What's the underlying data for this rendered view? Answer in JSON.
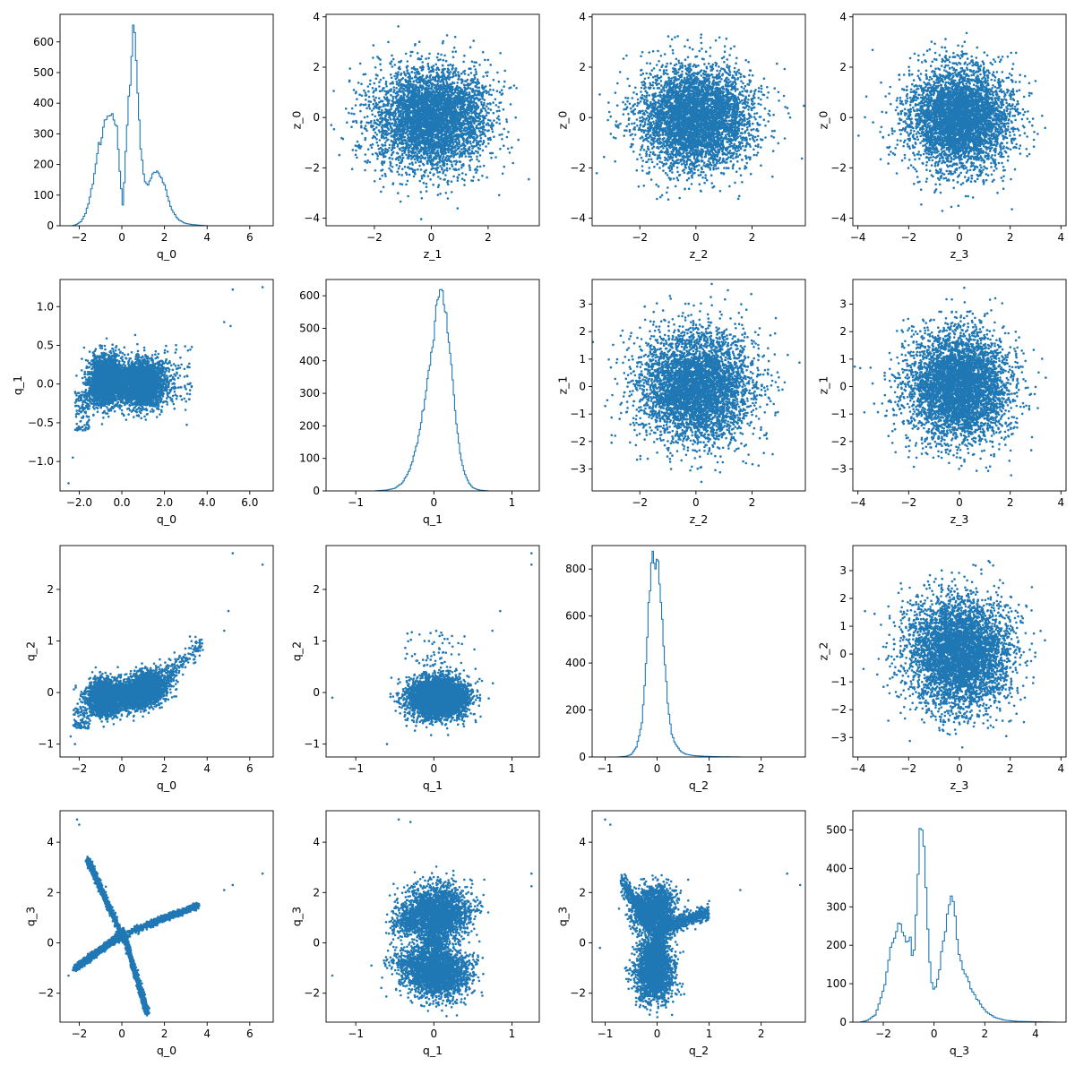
{
  "figure": {
    "title": "",
    "point_color": "#1f77b4",
    "hist_color": "#1f77b4",
    "layout": "4x4 corner grid: histograms on diagonal, scatter below diagonal (q vs q), scatter above diagonal (z vs z)"
  },
  "chart_data": [
    {
      "type": "histogram",
      "row": 0,
      "col": 0,
      "xlabel": "q_0",
      "ylabel": "",
      "xlim": [
        -2.9,
        7.1
      ],
      "ylim": [
        0,
        690
      ],
      "xticks": [
        -2,
        0,
        2,
        4,
        6
      ],
      "yticks": [
        0,
        100,
        200,
        300,
        400,
        500,
        600
      ],
      "curve": [
        [
          -2.3,
          0
        ],
        [
          -2.1,
          5
        ],
        [
          -1.9,
          15
        ],
        [
          -1.7,
          40
        ],
        [
          -1.5,
          90
        ],
        [
          -1.3,
          160
        ],
        [
          -1.1,
          260
        ],
        [
          -0.95,
          270
        ],
        [
          -0.8,
          340
        ],
        [
          -0.6,
          365
        ],
        [
          -0.4,
          360
        ],
        [
          -0.25,
          330
        ],
        [
          -0.15,
          240
        ],
        [
          -0.05,
          140
        ],
        [
          0.05,
          65
        ],
        [
          0.15,
          180
        ],
        [
          0.28,
          380
        ],
        [
          0.4,
          470
        ],
        [
          0.5,
          610
        ],
        [
          0.58,
          660
        ],
        [
          0.65,
          570
        ],
        [
          0.75,
          420
        ],
        [
          0.9,
          240
        ],
        [
          1.05,
          150
        ],
        [
          1.2,
          130
        ],
        [
          1.35,
          150
        ],
        [
          1.5,
          175
        ],
        [
          1.65,
          180
        ],
        [
          1.8,
          160
        ],
        [
          1.95,
          140
        ],
        [
          2.1,
          110
        ],
        [
          2.25,
          70
        ],
        [
          2.4,
          45
        ],
        [
          2.55,
          30
        ],
        [
          2.7,
          18
        ],
        [
          2.9,
          10
        ],
        [
          3.1,
          6
        ],
        [
          3.3,
          4
        ],
        [
          3.6,
          2
        ],
        [
          4.0,
          0
        ]
      ],
      "bins": 90
    },
    {
      "type": "scatter",
      "row": 0,
      "col": 1,
      "xlabel": "z_1",
      "ylabel": "z_0",
      "xlim": [
        -3.7,
        3.8
      ],
      "ylim": [
        -4.3,
        4.1
      ],
      "xticks": [
        -2,
        0,
        2
      ],
      "yticks": [
        -4,
        -2,
        0,
        2,
        4
      ],
      "distribution": "isotropic gaussian, mean 0, std 1",
      "n_points": 10000
    },
    {
      "type": "scatter",
      "row": 0,
      "col": 2,
      "xlabel": "z_2",
      "ylabel": "z_0",
      "xlim": [
        -3.7,
        3.9
      ],
      "ylim": [
        -4.3,
        4.1
      ],
      "xticks": [
        -2,
        0,
        2
      ],
      "yticks": [
        -4,
        -2,
        0,
        2,
        4
      ],
      "distribution": "isotropic gaussian, mean 0, std 1",
      "n_points": 10000
    },
    {
      "type": "scatter",
      "row": 0,
      "col": 3,
      "xlabel": "z_3",
      "ylabel": "z_0",
      "xlim": [
        -4.2,
        4.2
      ],
      "ylim": [
        -4.3,
        4.1
      ],
      "xticks": [
        -4,
        -2,
        0,
        2,
        4
      ],
      "yticks": [
        -4,
        -2,
        0,
        2,
        4
      ],
      "distribution": "isotropic gaussian, mean 0, std 1",
      "n_points": 10000
    },
    {
      "type": "scatter",
      "row": 1,
      "col": 0,
      "xlabel": "q_0",
      "ylabel": "q_1",
      "xlim": [
        -2.9,
        7.1
      ],
      "ylim": [
        -1.38,
        1.35
      ],
      "xticks": [
        -2,
        0,
        2,
        4,
        6
      ],
      "yticks": [
        -1.0,
        -0.5,
        0.0,
        0.5,
        1.0
      ],
      "tick_format": "one_decimal",
      "distribution": "two lobes: centers (-0.7, 0.05) and (1.0, 0.0), wings at q_0=0",
      "outliers": [
        [
          5.2,
          1.22
        ],
        [
          6.6,
          1.25
        ],
        [
          4.8,
          0.8
        ],
        [
          5.1,
          0.75
        ],
        [
          -2.5,
          -1.28
        ],
        [
          -2.3,
          -0.95
        ]
      ]
    },
    {
      "type": "histogram",
      "row": 1,
      "col": 1,
      "xlabel": "q_1",
      "ylabel": "",
      "xlim": [
        -1.38,
        1.35
      ],
      "ylim": [
        0,
        650
      ],
      "xticks": [
        -1,
        0,
        1
      ],
      "yticks": [
        0,
        100,
        200,
        300,
        400,
        500,
        600
      ],
      "curve": [
        [
          -0.75,
          0
        ],
        [
          -0.6,
          3
        ],
        [
          -0.5,
          8
        ],
        [
          -0.4,
          25
        ],
        [
          -0.3,
          70
        ],
        [
          -0.2,
          160
        ],
        [
          -0.1,
          300
        ],
        [
          -0.05,
          390
        ],
        [
          0.0,
          460
        ],
        [
          0.03,
          560
        ],
        [
          0.06,
          615
        ],
        [
          0.09,
          620
        ],
        [
          0.12,
          600
        ],
        [
          0.15,
          560
        ],
        [
          0.2,
          440
        ],
        [
          0.25,
          310
        ],
        [
          0.3,
          180
        ],
        [
          0.35,
          100
        ],
        [
          0.4,
          50
        ],
        [
          0.45,
          25
        ],
        [
          0.5,
          10
        ],
        [
          0.55,
          5
        ],
        [
          0.6,
          2
        ],
        [
          0.7,
          0
        ]
      ],
      "bins": 90
    },
    {
      "type": "scatter",
      "row": 1,
      "col": 2,
      "xlabel": "z_2",
      "ylabel": "z_1",
      "xlim": [
        -3.7,
        3.9
      ],
      "ylim": [
        -3.8,
        3.9
      ],
      "xticks": [
        -2,
        0,
        2
      ],
      "yticks": [
        -3,
        -2,
        -1,
        0,
        1,
        2,
        3
      ],
      "distribution": "isotropic gaussian, mean 0, std 1",
      "n_points": 10000
    },
    {
      "type": "scatter",
      "row": 1,
      "col": 3,
      "xlabel": "z_3",
      "ylabel": "z_1",
      "xlim": [
        -4.2,
        4.2
      ],
      "ylim": [
        -3.8,
        3.9
      ],
      "xticks": [
        -4,
        -2,
        0,
        2,
        4
      ],
      "yticks": [
        -3,
        -2,
        -1,
        0,
        1,
        2,
        3
      ],
      "distribution": "isotropic gaussian, mean 0, std 1",
      "n_points": 10000
    },
    {
      "type": "scatter",
      "row": 2,
      "col": 0,
      "xlabel": "q_0",
      "ylabel": "q_2",
      "xlim": [
        -2.9,
        7.1
      ],
      "ylim": [
        -1.25,
        2.85
      ],
      "xticks": [
        -2,
        0,
        2,
        4,
        6
      ],
      "yticks": [
        -1,
        0,
        1,
        2
      ],
      "distribution": "bowtie: lobes at (-0.8, -0.1) and (1.0, 0.05), upper-right tail",
      "outliers": [
        [
          5.2,
          2.7
        ],
        [
          6.6,
          2.48
        ],
        [
          5.0,
          1.58
        ],
        [
          4.8,
          1.2
        ],
        [
          -2.2,
          -1.0
        ],
        [
          -2.4,
          -0.85
        ]
      ]
    },
    {
      "type": "scatter",
      "row": 2,
      "col": 1,
      "xlabel": "q_1",
      "ylabel": "q_2",
      "xlim": [
        -1.38,
        1.35
      ],
      "ylim": [
        -1.25,
        2.85
      ],
      "xticks": [
        -1,
        0,
        1
      ],
      "yticks": [
        -1,
        0,
        1,
        2
      ],
      "distribution": "compact elliptical cloud centered near (0.05, -0.1)",
      "outliers": [
        [
          1.25,
          2.7
        ],
        [
          1.25,
          2.48
        ],
        [
          0.85,
          1.58
        ],
        [
          0.75,
          1.2
        ],
        [
          -1.3,
          -0.1
        ],
        [
          -0.6,
          -1.0
        ]
      ]
    },
    {
      "type": "histogram",
      "row": 2,
      "col": 2,
      "xlabel": "q_2",
      "ylabel": "",
      "xlim": [
        -1.25,
        2.85
      ],
      "ylim": [
        0,
        900
      ],
      "xticks": [
        -1,
        0,
        1,
        2
      ],
      "yticks": [
        0,
        200,
        400,
        600,
        800
      ],
      "curve": [
        [
          -0.75,
          0
        ],
        [
          -0.6,
          3
        ],
        [
          -0.5,
          10
        ],
        [
          -0.4,
          40
        ],
        [
          -0.3,
          130
        ],
        [
          -0.25,
          270
        ],
        [
          -0.2,
          470
        ],
        [
          -0.15,
          690
        ],
        [
          -0.1,
          830
        ],
        [
          -0.07,
          860
        ],
        [
          -0.04,
          810
        ],
        [
          -0.01,
          850
        ],
        [
          0.03,
          790
        ],
        [
          0.08,
          660
        ],
        [
          0.12,
          500
        ],
        [
          0.17,
          330
        ],
        [
          0.22,
          190
        ],
        [
          0.28,
          100
        ],
        [
          0.35,
          55
        ],
        [
          0.45,
          25
        ],
        [
          0.55,
          12
        ],
        [
          0.7,
          6
        ],
        [
          0.9,
          3
        ],
        [
          1.2,
          1
        ],
        [
          1.6,
          0
        ]
      ],
      "bins": 90
    },
    {
      "type": "scatter",
      "row": 2,
      "col": 3,
      "xlabel": "z_3",
      "ylabel": "z_2",
      "xlim": [
        -4.2,
        4.2
      ],
      "ylim": [
        -3.7,
        3.9
      ],
      "xticks": [
        -4,
        -2,
        0,
        2,
        4
      ],
      "yticks": [
        -3,
        -2,
        -1,
        0,
        1,
        2,
        3
      ],
      "distribution": "isotropic gaussian, mean 0, std 1",
      "n_points": 10000
    },
    {
      "type": "scatter",
      "row": 3,
      "col": 0,
      "xlabel": "q_0",
      "ylabel": "q_3",
      "xlim": [
        -2.9,
        7.1
      ],
      "ylim": [
        -3.15,
        5.25
      ],
      "xticks": [
        -2,
        0,
        2,
        4,
        6
      ],
      "yticks": [
        -2,
        0,
        2,
        4
      ],
      "distribution": "four-armed star",
      "arms": [
        [
          [
            -0.1,
            0.5
          ],
          [
            -1.6,
            3.3
          ]
        ],
        [
          [
            0.1,
            0.3
          ],
          [
            1.2,
            -2.8
          ]
        ],
        [
          [
            -0.2,
            0.2
          ],
          [
            -2.2,
            -1.0
          ]
        ],
        [
          [
            0.3,
            0.4
          ],
          [
            3.6,
            1.5
          ]
        ]
      ],
      "outliers": [
        [
          -2.1,
          4.9
        ],
        [
          -2.0,
          4.7
        ],
        [
          4.8,
          2.1
        ],
        [
          5.2,
          2.3
        ],
        [
          6.6,
          2.75
        ],
        [
          -2.5,
          -1.3
        ]
      ]
    },
    {
      "type": "scatter",
      "row": 3,
      "col": 1,
      "xlabel": "q_1",
      "ylabel": "q_3",
      "xlim": [
        -1.38,
        1.35
      ],
      "ylim": [
        -3.15,
        5.25
      ],
      "xticks": [
        -1,
        0,
        1
      ],
      "yticks": [
        -2,
        0,
        2,
        4
      ],
      "distribution": "hourglass: upper blob around q_3=1.2, lower blob around q_3=-1.2, pinched at 0",
      "outliers": [
        [
          -0.45,
          4.9
        ],
        [
          -0.3,
          4.8
        ],
        [
          1.25,
          2.75
        ],
        [
          1.25,
          2.25
        ],
        [
          -1.3,
          -1.3
        ],
        [
          -0.8,
          -0.9
        ]
      ]
    },
    {
      "type": "scatter",
      "row": 3,
      "col": 2,
      "xlabel": "q_2",
      "ylabel": "q_3",
      "xlim": [
        -1.25,
        2.85
      ],
      "ylim": [
        -3.15,
        5.25
      ],
      "xticks": [
        -1,
        0,
        1,
        2
      ],
      "yticks": [
        -2,
        0,
        2,
        4
      ],
      "distribution": "upper fan skewed left and right, lower column",
      "outliers": [
        [
          -1.0,
          4.9
        ],
        [
          -0.9,
          4.7
        ],
        [
          2.5,
          2.75
        ],
        [
          2.75,
          2.3
        ],
        [
          1.6,
          2.1
        ],
        [
          -1.1,
          -0.2
        ]
      ]
    },
    {
      "type": "histogram",
      "row": 3,
      "col": 3,
      "xlabel": "q_3",
      "ylabel": "",
      "xlim": [
        -3.2,
        5.2
      ],
      "ylim": [
        0,
        550
      ],
      "xticks": [
        -2,
        0,
        2,
        4
      ],
      "yticks": [
        0,
        100,
        200,
        300,
        400,
        500
      ],
      "curve": [
        [
          -2.9,
          0
        ],
        [
          -2.6,
          5
        ],
        [
          -2.3,
          20
        ],
        [
          -2.1,
          60
        ],
        [
          -1.9,
          110
        ],
        [
          -1.7,
          190
        ],
        [
          -1.5,
          235
        ],
        [
          -1.35,
          260
        ],
        [
          -1.2,
          230
        ],
        [
          -1.05,
          200
        ],
        [
          -0.95,
          240
        ],
        [
          -0.85,
          160
        ],
        [
          -0.75,
          210
        ],
        [
          -0.62,
          410
        ],
        [
          -0.52,
          525
        ],
        [
          -0.42,
          470
        ],
        [
          -0.32,
          360
        ],
        [
          -0.22,
          200
        ],
        [
          -0.1,
          110
        ],
        [
          0.0,
          80
        ],
        [
          0.1,
          100
        ],
        [
          0.2,
          130
        ],
        [
          0.32,
          190
        ],
        [
          0.42,
          220
        ],
        [
          0.52,
          280
        ],
        [
          0.62,
          300
        ],
        [
          0.72,
          330
        ],
        [
          0.82,
          300
        ],
        [
          0.92,
          200
        ],
        [
          1.05,
          160
        ],
        [
          1.2,
          130
        ],
        [
          1.35,
          110
        ],
        [
          1.5,
          80
        ],
        [
          1.7,
          60
        ],
        [
          1.9,
          40
        ],
        [
          2.1,
          25
        ],
        [
          2.4,
          12
        ],
        [
          2.8,
          5
        ],
        [
          3.3,
          2
        ],
        [
          4.0,
          1
        ],
        [
          4.8,
          0
        ]
      ],
      "bins": 100
    }
  ]
}
